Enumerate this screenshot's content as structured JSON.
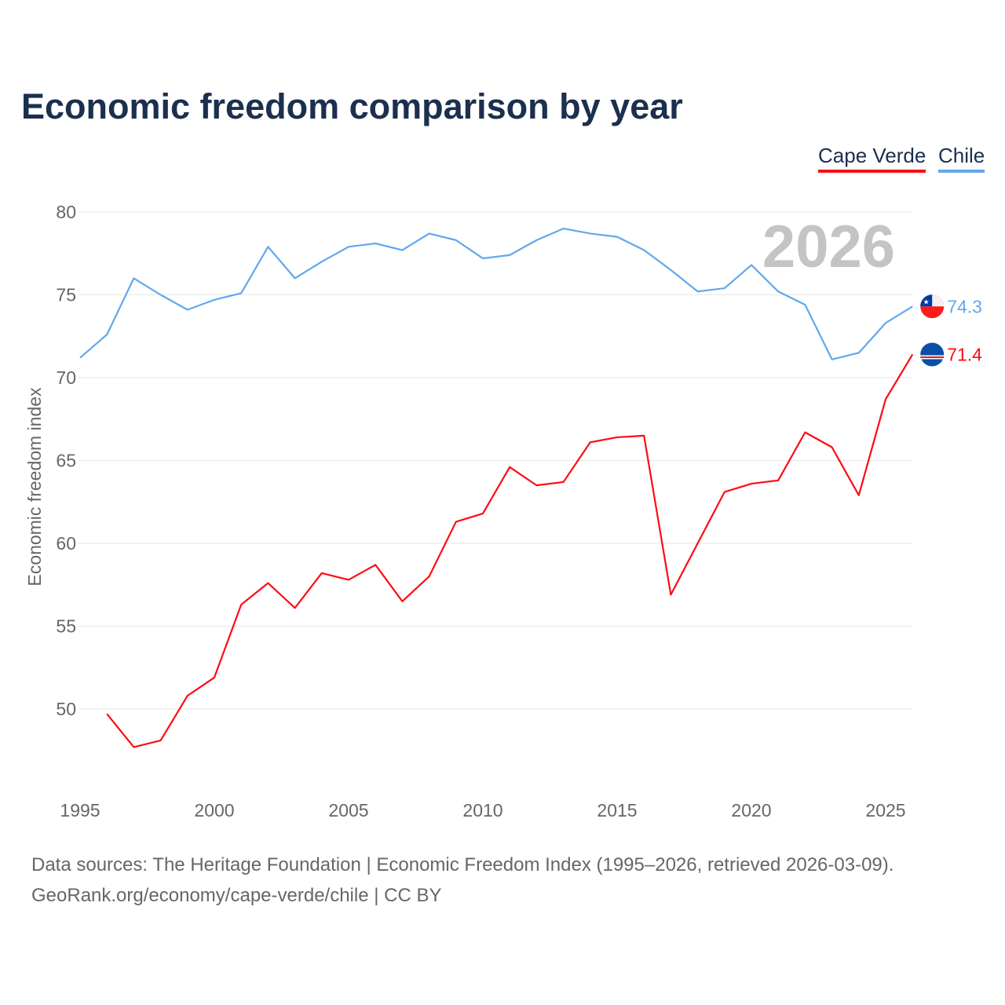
{
  "chart_data": {
    "type": "line",
    "title": "Economic freedom comparison by year",
    "xlabel": "",
    "ylabel": "Economic freedom index",
    "xlim": [
      1995,
      2026
    ],
    "ylim": [
      45,
      80
    ],
    "x_ticks": [
      "1995",
      "2000",
      "2005",
      "2010",
      "2015",
      "2020",
      "2025"
    ],
    "y_ticks": [
      "50",
      "55",
      "60",
      "65",
      "70",
      "75",
      "80"
    ],
    "grid": true,
    "legend_position": "top-right",
    "watermark_year": "2026",
    "series": [
      {
        "name": "Cape Verde",
        "color": "#ff0a14",
        "end_label": "71.4",
        "x": [
          1996,
          1997,
          1998,
          1999,
          2000,
          2001,
          2002,
          2003,
          2004,
          2005,
          2006,
          2007,
          2008,
          2009,
          2010,
          2011,
          2012,
          2013,
          2014,
          2015,
          2016,
          2017,
          2018,
          2019,
          2020,
          2021,
          2022,
          2023,
          2024,
          2025,
          2026
        ],
        "values": [
          49.7,
          47.7,
          48.1,
          50.8,
          51.9,
          56.3,
          57.6,
          56.1,
          58.2,
          57.8,
          58.7,
          56.5,
          58.0,
          61.3,
          61.8,
          64.6,
          63.5,
          63.7,
          66.1,
          66.4,
          66.5,
          56.9,
          60.0,
          63.1,
          63.6,
          63.8,
          66.7,
          65.8,
          62.9,
          68.7,
          71.4
        ]
      },
      {
        "name": "Chile",
        "color": "#60a8ee",
        "end_label": "74.3",
        "x": [
          1995,
          1996,
          1997,
          1998,
          1999,
          2000,
          2001,
          2002,
          2003,
          2004,
          2005,
          2006,
          2007,
          2008,
          2009,
          2010,
          2011,
          2012,
          2013,
          2014,
          2015,
          2016,
          2017,
          2018,
          2019,
          2020,
          2021,
          2022,
          2023,
          2024,
          2025,
          2026
        ],
        "values": [
          71.2,
          72.6,
          76.0,
          75.0,
          74.1,
          74.7,
          75.1,
          77.9,
          76.0,
          77.0,
          77.9,
          78.1,
          77.7,
          78.7,
          78.3,
          77.2,
          77.4,
          78.3,
          79.0,
          78.7,
          78.5,
          77.7,
          76.5,
          75.2,
          75.4,
          76.8,
          75.2,
          74.4,
          71.1,
          71.5,
          73.3,
          74.3
        ]
      }
    ]
  },
  "footer": {
    "line1": "Data sources: The Heritage Foundation | Economic Freedom Index (1995–2026, retrieved 2026-03-09).",
    "line2": "GeoRank.org/economy/cape-verde/chile | CC BY"
  }
}
